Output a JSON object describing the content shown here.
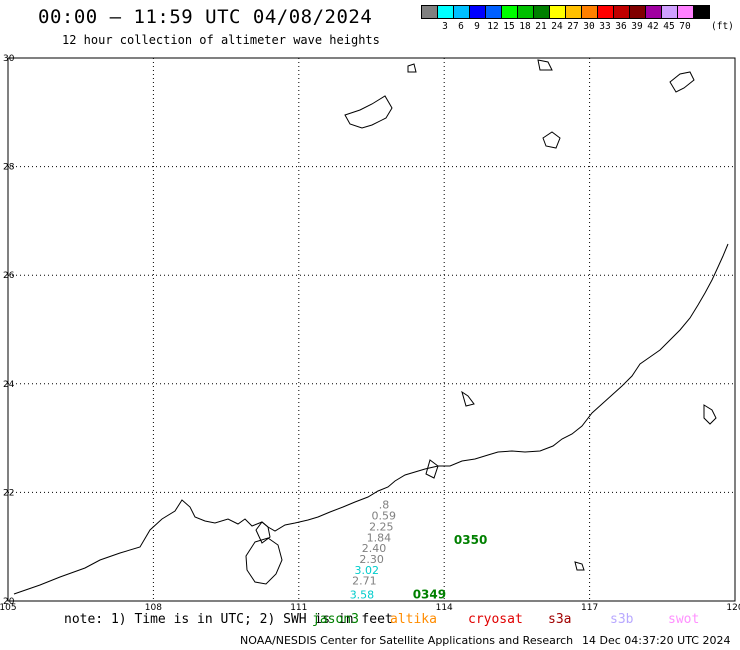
{
  "header": {
    "title": "00:00 – 11:59 UTC 04/08/2024",
    "subtitle": "12 hour collection of altimeter wave heights"
  },
  "legend": {
    "unit": "(ft)",
    "bins": [
      {
        "label": "",
        "color": "#808080"
      },
      {
        "label": "3",
        "color": "#00ffff"
      },
      {
        "label": "6",
        "color": "#00c0ff"
      },
      {
        "label": "9",
        "color": "#0000ff"
      },
      {
        "label": "12",
        "color": "#0060ff"
      },
      {
        "label": "15",
        "color": "#00ff00"
      },
      {
        "label": "18",
        "color": "#00c000"
      },
      {
        "label": "21",
        "color": "#008000"
      },
      {
        "label": "24",
        "color": "#ffff00"
      },
      {
        "label": "27",
        "color": "#ffc000"
      },
      {
        "label": "30",
        "color": "#ff8000"
      },
      {
        "label": "33",
        "color": "#ff0000"
      },
      {
        "label": "36",
        "color": "#c00000"
      },
      {
        "label": "39",
        "color": "#800000"
      },
      {
        "label": "42",
        "color": "#a000a0"
      },
      {
        "label": "45",
        "color": "#d0a0ff"
      },
      {
        "label": "70",
        "color": "#ff80ff"
      },
      {
        "label": "",
        "color": "#000000"
      }
    ]
  },
  "map": {
    "lon_ticks": [
      "105",
      "108",
      "111",
      "114",
      "117",
      "120"
    ],
    "lat_ticks": [
      "20",
      "22",
      "24",
      "26",
      "28",
      "30"
    ],
    "lon_range": [
      105,
      120
    ],
    "lat_range": [
      20,
      30
    ],
    "observations": [
      {
        "value": "3.58",
        "color": "#00cccc",
        "lon": 112.05,
        "lat": 20.05
      },
      {
        "value": "2.71",
        "color": "#808080",
        "lon": 112.1,
        "lat": 20.3
      },
      {
        "value": "3.02",
        "color": "#00cccc",
        "lon": 112.15,
        "lat": 20.5
      },
      {
        "value": "2.30",
        "color": "#808080",
        "lon": 112.25,
        "lat": 20.7
      },
      {
        "value": "2.40",
        "color": "#808080",
        "lon": 112.3,
        "lat": 20.9
      },
      {
        "value": "1.84",
        "color": "#808080",
        "lon": 112.4,
        "lat": 21.1
      },
      {
        "value": "2.25",
        "color": "#808080",
        "lon": 112.45,
        "lat": 21.3
      },
      {
        "value": "0.59",
        "color": "#808080",
        "lon": 112.5,
        "lat": 21.5
      },
      {
        "value": ".8",
        "color": "#808080",
        "lon": 112.65,
        "lat": 21.7
      }
    ],
    "pass_labels": [
      {
        "text": "0350",
        "color": "#008000",
        "lon": 114.2,
        "lat": 21.05
      },
      {
        "text": "0349",
        "color": "#008000",
        "lon": 113.35,
        "lat": 20.05
      }
    ]
  },
  "footer": {
    "note": "note: 1) Time is in UTC; 2) SWH is in feet",
    "missions": [
      {
        "name": "jason3",
        "color": "#008000"
      },
      {
        "name": "altika",
        "color": "#ff8c00"
      },
      {
        "name": "cryosat",
        "color": "#e00000"
      },
      {
        "name": "s3a",
        "color": "#a00000"
      },
      {
        "name": "s3b",
        "color": "#b8a8ff"
      },
      {
        "name": "swot",
        "color": "#ff90ff"
      }
    ],
    "credit": "NOAA/NESDIS Center for Satellite Applications and Research",
    "timestamp": "14 Dec 04:37:20 UTC 2024"
  }
}
